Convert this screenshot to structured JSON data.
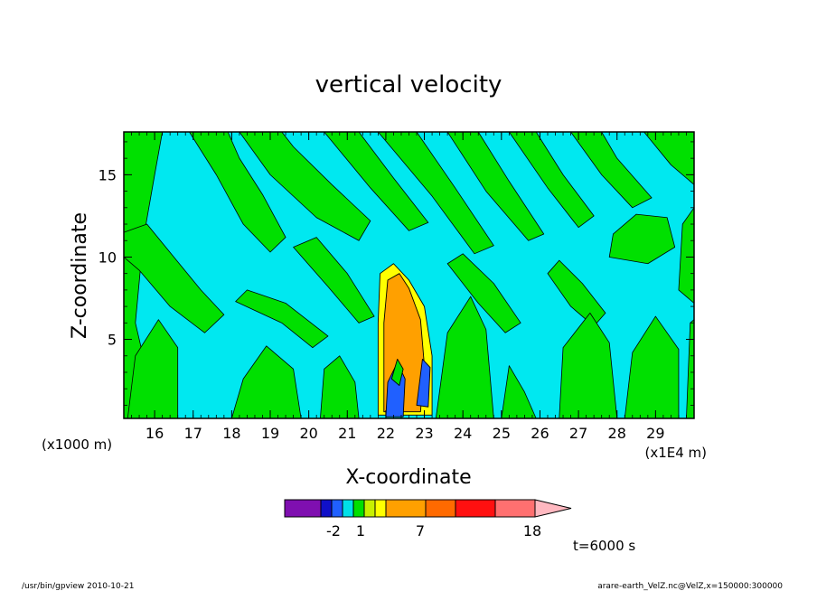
{
  "chart_data": {
    "type": "heatmap",
    "title": "vertical velocity",
    "xlabel": "X-coordinate",
    "ylabel": "Z-coordinate",
    "x_unit_label": "(x1E4 m)",
    "y_unit_label": "(x1000 m)",
    "xlim": [
      15.2,
      30.0
    ],
    "ylim": [
      0.2,
      17.6
    ],
    "x_ticks": [
      16,
      17,
      18,
      19,
      20,
      21,
      22,
      23,
      24,
      25,
      26,
      27,
      28,
      29
    ],
    "y_ticks": [
      5,
      10,
      15
    ],
    "background_band": "0 to 1 (cyan)",
    "colorbar": {
      "colors": [
        "#7f0fb0",
        "#1010c8",
        "#2060ff",
        "#00e0e8",
        "#00e000",
        "#c8f000",
        "#ffff00",
        "#ffa000",
        "#ff6a00",
        "#ff1010",
        "#ff7070",
        "#ffb8c0"
      ],
      "tick_labels": [
        "-2",
        "1",
        "7",
        "18"
      ]
    },
    "regions": [
      {
        "level": "1 to 3 (green)",
        "color": "#00e000",
        "x_range": [
          15.2,
          30.0
        ],
        "z_range": [
          0.2,
          17.6
        ],
        "pattern": "diagonal bands over cyan"
      },
      {
        "level": "updraft core (orange)",
        "color": "#ffa000",
        "x_range": [
          21.9,
          23.0
        ],
        "z_range": [
          0.5,
          9.5
        ]
      },
      {
        "level": "downdraft (blue)",
        "color": "#1e4fff",
        "x_range": [
          22.0,
          23.2
        ],
        "z_range": [
          0.3,
          4.0
        ]
      }
    ]
  },
  "annotations": {
    "time": "t=6000 s",
    "footer_left": "/usr/bin/gpview   2010-10-21",
    "footer_right": "arare-earth_VelZ.nc@VelZ,x=150000:300000"
  }
}
